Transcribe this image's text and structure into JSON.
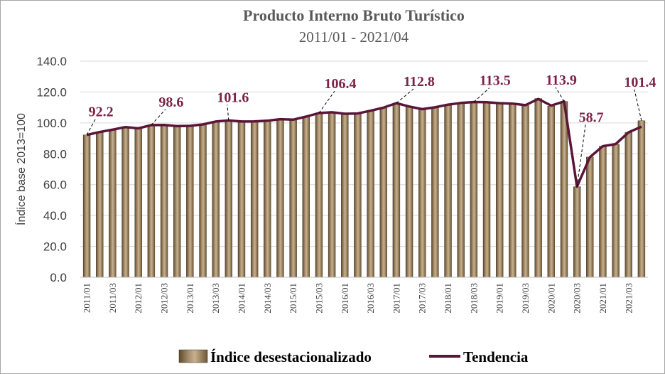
{
  "chart_data": {
    "type": "bar",
    "title": "Producto Interno Bruto Turístico",
    "subtitle": "2011/01  -  2021/04",
    "ylabel": "Índice base 2013=100",
    "ylim": [
      0,
      140
    ],
    "yticks": [
      "0.0",
      "20.0",
      "40.0",
      "60.0",
      "80.0",
      "100.0",
      "120.0",
      "140.0"
    ],
    "ytick_values": [
      0,
      20,
      40,
      60,
      80,
      100,
      120,
      140
    ],
    "grid": true,
    "categories": [
      "2011/01",
      "2011/02",
      "2011/03",
      "2011/04",
      "2012/01",
      "2012/02",
      "2012/03",
      "2012/04",
      "2013/01",
      "2013/02",
      "2013/03",
      "2013/04",
      "2014/01",
      "2014/02",
      "2014/03",
      "2014/04",
      "2015/01",
      "2015/02",
      "2015/03",
      "2015/04",
      "2016/01",
      "2016/02",
      "2016/03",
      "2016/04",
      "2017/01",
      "2017/02",
      "2017/03",
      "2017/04",
      "2018/01",
      "2018/02",
      "2018/03",
      "2018/04",
      "2019/01",
      "2019/02",
      "2019/03",
      "2019/04",
      "2020/01",
      "2020/02",
      "2020/03",
      "2020/04",
      "2021/01",
      "2021/02",
      "2021/03",
      "2021/04"
    ],
    "tick_labels": [
      "2011/01",
      "2011/03",
      "2012/01",
      "2012/03",
      "2013/01",
      "2013/03",
      "2014/01",
      "2014/03",
      "2015/01",
      "2015/03",
      "2016/01",
      "2016/03",
      "2017/01",
      "2017/03",
      "2018/01",
      "2018/03",
      "2019/01",
      "2019/03",
      "2020/01",
      "2020/03",
      "2021/01",
      "2021/03"
    ],
    "series": [
      {
        "name": "Índice desestacionalizado",
        "color": "#8a7450",
        "values": [
          92.2,
          94.3,
          95.4,
          97.6,
          96.1,
          98.6,
          98.9,
          97.8,
          98.0,
          98.8,
          101.0,
          101.6,
          100.8,
          100.9,
          101.3,
          102.5,
          102.0,
          104.0,
          106.4,
          107.1,
          105.8,
          105.9,
          107.7,
          109.6,
          112.8,
          110.4,
          108.7,
          110.0,
          111.7,
          112.8,
          113.5,
          113.4,
          112.7,
          112.6,
          111.3,
          115.8,
          110.9,
          113.9,
          58.7,
          77.9,
          84.9,
          86.2,
          93.9,
          101.4
        ]
      },
      {
        "name": "Tendencia",
        "color": "#5a1537",
        "values": [
          92.2,
          94.1,
          95.6,
          97.3,
          96.5,
          98.6,
          98.7,
          97.9,
          98.1,
          99.0,
          100.9,
          101.6,
          100.9,
          101.0,
          101.4,
          102.4,
          102.1,
          104.1,
          106.4,
          106.9,
          105.9,
          106.1,
          107.9,
          109.9,
          112.8,
          110.6,
          108.9,
          110.1,
          111.8,
          112.9,
          113.5,
          113.4,
          112.8,
          112.5,
          111.5,
          115.5,
          111.2,
          113.9,
          58.7,
          77.8,
          84.9,
          86.3,
          93.9,
          97.6
        ]
      }
    ],
    "annotations": [
      {
        "index": 0,
        "text": "92.2"
      },
      {
        "index": 5,
        "text": "98.6"
      },
      {
        "index": 11,
        "text": "101.6"
      },
      {
        "index": 18,
        "text": "106.4"
      },
      {
        "index": 24,
        "text": "112.8"
      },
      {
        "index": 30,
        "text": "113.5"
      },
      {
        "index": 37,
        "text": "113.9"
      },
      {
        "index": 38,
        "text": "58.7"
      },
      {
        "index": 43,
        "text": "101.4"
      }
    ],
    "legend": {
      "position": "bottom",
      "items": [
        "Índice desestacionalizado",
        "Tendencia"
      ]
    }
  }
}
